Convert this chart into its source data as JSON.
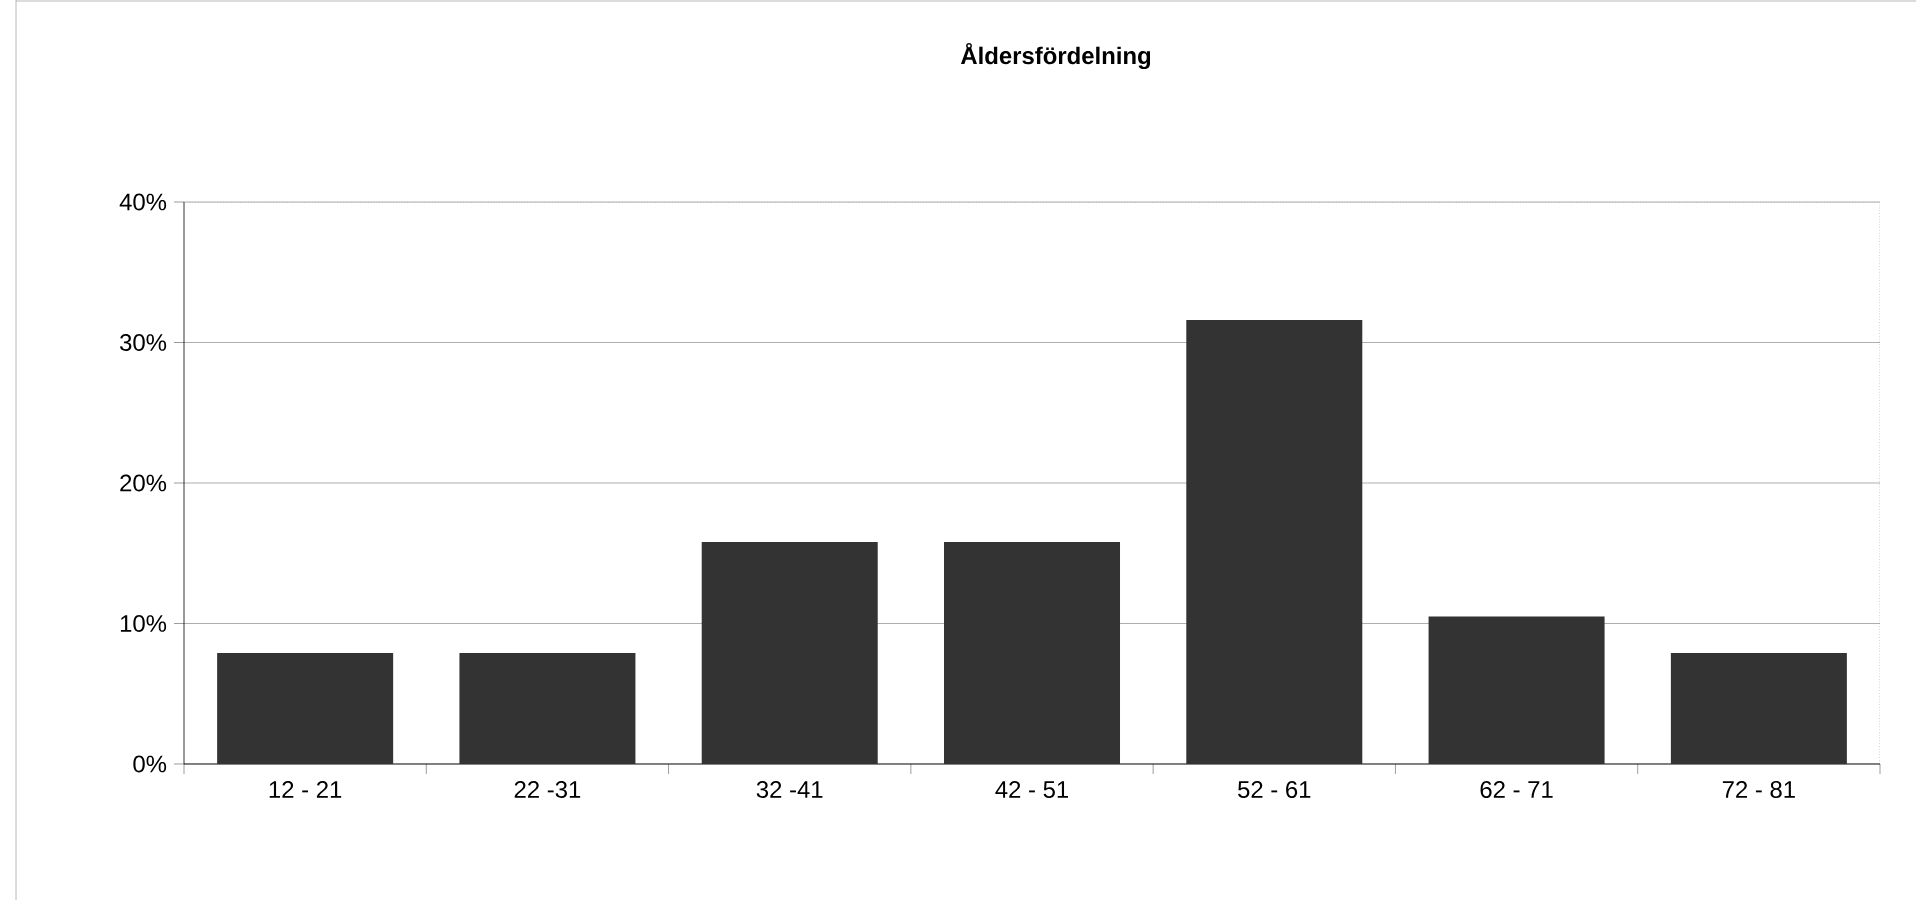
{
  "chart_data": {
    "type": "bar",
    "title": "Åldersfördelning",
    "categories": [
      "12 - 21",
      "22 -31",
      "32 -41",
      "42 - 51",
      "52 - 61",
      "62 - 71",
      "72 - 81"
    ],
    "values": [
      7.9,
      7.9,
      15.8,
      15.8,
      31.6,
      10.5,
      7.9
    ],
    "color": "#333333",
    "ylim": [
      0,
      40
    ],
    "yticks": [
      {
        "value": 0,
        "label": "0%"
      },
      {
        "value": 10,
        "label": "10%"
      },
      {
        "value": 20,
        "label": "20%"
      },
      {
        "value": 30,
        "label": "30%"
      },
      {
        "value": 40,
        "label": "40%"
      }
    ],
    "grid": "y"
  }
}
